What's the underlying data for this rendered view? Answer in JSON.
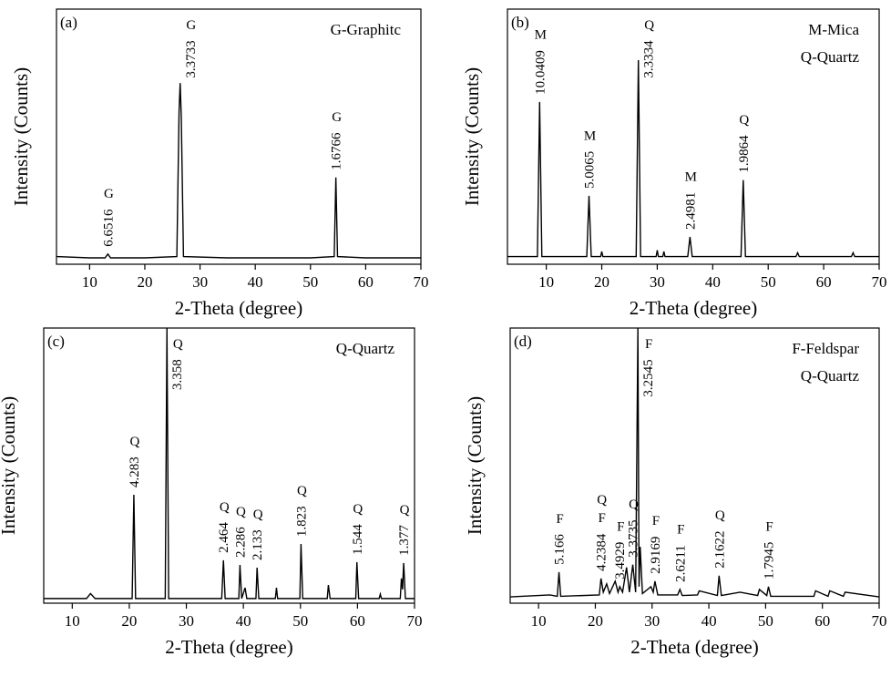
{
  "chart_data": [
    {
      "type": "line",
      "panel": "(a)",
      "xlabel": "2-Theta (degree)",
      "ylabel": "Intensity (Counts)",
      "legend_text": [
        "G-Graphitc"
      ],
      "color": "#000000",
      "xlim": [
        4,
        70
      ],
      "ylim": [
        0,
        100
      ],
      "xticks": [
        10,
        20,
        30,
        40,
        50,
        60,
        70
      ],
      "x": [
        4,
        10,
        12.8,
        13.3,
        13.8,
        20,
        25.8,
        26.2,
        26.4,
        26.6,
        27.0,
        35,
        50,
        54.3,
        54.6,
        54.9,
        60,
        70
      ],
      "values": [
        3,
        2.5,
        2.5,
        4,
        2.5,
        2.5,
        3,
        60,
        71,
        58,
        3,
        2.5,
        2.5,
        3,
        34,
        3,
        2.5,
        2.5
      ],
      "annotations": [
        {
          "phase": [
            "G"
          ],
          "label": "6.6516",
          "x": 13.3
        },
        {
          "phase": [
            "G"
          ],
          "label": "3.3733",
          "x": 26.4
        },
        {
          "phase": [
            "G"
          ],
          "label": "1.6766",
          "x": 54.6
        }
      ]
    },
    {
      "type": "line",
      "panel": "(b)",
      "xlabel": "2-Theta (degree)",
      "ylabel": "Intensity (Counts)",
      "legend_text": [
        "M-Mica",
        "Q-Quartz"
      ],
      "color": "#000000",
      "xlim": [
        3,
        70
      ],
      "ylim": [
        0,
        100
      ],
      "xticks": [
        10,
        20,
        30,
        40,
        50,
        60,
        70
      ],
      "x": [
        3,
        8.4,
        8.8,
        9.2,
        17.3,
        17.7,
        18.1,
        19.8,
        20.0,
        20.2,
        26.2,
        26.6,
        27.0,
        29.8,
        30.0,
        30.2,
        31.0,
        31.2,
        31.4,
        35.5,
        35.9,
        36.3,
        45.1,
        45.5,
        45.9,
        55,
        55.3,
        55.6,
        65,
        65.3,
        65.6,
        70
      ],
      "values": [
        3,
        3,
        63.6,
        3,
        3,
        26.8,
        3,
        3,
        5,
        3,
        3,
        80,
        3,
        3,
        5.5,
        3,
        3,
        5,
        3,
        3,
        10.7,
        3,
        3,
        33,
        3,
        3,
        4.5,
        3,
        3,
        4.5,
        3,
        3
      ],
      "annotations": [
        {
          "phase": [
            "M"
          ],
          "label": "10.0409",
          "x": 8.8
        },
        {
          "phase": [
            "M"
          ],
          "label": "5.0065",
          "x": 17.7
        },
        {
          "phase": [
            "Q"
          ],
          "label": "3.3334",
          "x": 26.6
        },
        {
          "phase": [
            "M"
          ],
          "label": "2.4981",
          "x": 35.9
        },
        {
          "phase": [
            "Q"
          ],
          "label": "1.9864",
          "x": 45.5
        }
      ]
    },
    {
      "type": "line",
      "panel": "(c)",
      "xlabel": "2-Theta (degree)",
      "ylabel": "Intensity (Counts)",
      "legend_text": [
        "Q-Quartz"
      ],
      "color": "#000000",
      "xlim": [
        5,
        70
      ],
      "ylim": [
        0,
        100
      ],
      "xticks": [
        10,
        20,
        30,
        40,
        50,
        60,
        70
      ],
      "x": [
        5,
        12.5,
        13.2,
        14,
        20.5,
        20.8,
        21.1,
        26.3,
        26.6,
        26.9,
        36.2,
        36.5,
        36.8,
        39.2,
        39.4,
        39.7,
        40.3,
        40.6,
        42.2,
        42.4,
        42.7,
        45.6,
        45.8,
        46.0,
        49.9,
        50.1,
        50.4,
        54.7,
        54.9,
        55.2,
        59.7,
        59.9,
        60.2,
        63.8,
        64.0,
        64.2,
        67.5,
        67.7,
        67.9,
        68.1,
        68.4,
        70
      ],
      "values": [
        1.7,
        1.7,
        3.5,
        1.7,
        1.7,
        39.4,
        1.7,
        1.7,
        100,
        1.7,
        1.7,
        15.6,
        1.7,
        1.7,
        13.9,
        1.7,
        5.6,
        1.7,
        1.7,
        12.9,
        1.7,
        1.7,
        5.6,
        1.7,
        1.7,
        21.5,
        1.7,
        1.7,
        6.6,
        1.7,
        1.7,
        14.9,
        1.7,
        1.7,
        3.3,
        1.7,
        1.7,
        9,
        5,
        14.6,
        1.7,
        1.7
      ],
      "annotations": [
        {
          "phase": [
            "Q"
          ],
          "label": "4.283",
          "x": 20.8
        },
        {
          "phase": [
            "Q"
          ],
          "label": "3.358",
          "x": 26.6
        },
        {
          "phase": [
            "Q"
          ],
          "label": "2.464",
          "x": 36.5
        },
        {
          "phase": [
            "Q"
          ],
          "label": "2.286",
          "x": 39.4
        },
        {
          "phase": [
            "Q"
          ],
          "label": "2.133",
          "x": 42.4
        },
        {
          "phase": [
            "Q"
          ],
          "label": "1.823",
          "x": 50.1
        },
        {
          "phase": [
            "Q"
          ],
          "label": "1.544",
          "x": 59.9
        },
        {
          "phase": [
            "Q"
          ],
          "label": "1.377",
          "x": 68.1
        }
      ]
    },
    {
      "type": "line",
      "panel": "(d)",
      "xlabel": "2-Theta (degree)",
      "ylabel": "Intensity (Counts)",
      "legend_text": [
        "F-Feldspar",
        "Q-Quartz"
      ],
      "color": "#000000",
      "xlim": [
        5,
        70
      ],
      "ylim": [
        0,
        100
      ],
      "xticks": [
        10,
        20,
        30,
        40,
        50,
        60,
        70
      ],
      "x": [
        5,
        12,
        13.3,
        13.6,
        13.9,
        20.7,
        21.0,
        21.4,
        22.0,
        22.5,
        23.5,
        24.0,
        24.3,
        24.8,
        25.5,
        26.0,
        26.6,
        27.1,
        27.5,
        27.7,
        27.9,
        28.3,
        29.8,
        30.2,
        30.5,
        31.0,
        34.5,
        34.9,
        35.3,
        38.0,
        38.3,
        41.5,
        41.8,
        42.2,
        45.5,
        48.6,
        48.9,
        50.2,
        50.5,
        50.9,
        58.5,
        58.8,
        61,
        61.3,
        63.7,
        64.0,
        70
      ],
      "values": [
        2.3,
        3,
        2.5,
        11.3,
        2.5,
        3,
        9,
        4,
        7,
        3.5,
        8,
        4,
        6,
        4,
        13,
        4,
        14,
        4,
        100,
        6,
        20.5,
        3.5,
        6,
        4,
        8,
        3,
        3,
        5,
        2.8,
        3,
        4.5,
        2.8,
        10,
        2.8,
        4,
        2.8,
        5,
        2.8,
        6,
        2.5,
        2.5,
        4.5,
        2.5,
        4.5,
        2.5,
        4,
        2.3
      ],
      "annotations": [
        {
          "phase": [
            "F"
          ],
          "label": "5.166",
          "x": 13.6
        },
        {
          "phase": [
            "Q",
            "F"
          ],
          "label": "4.2384",
          "x": 21.0
        },
        {
          "phase": [
            "F"
          ],
          "label": "3.4929",
          "x": 24.3
        },
        {
          "phase": [
            "Q"
          ],
          "label": "3.3735",
          "x": 26.6
        },
        {
          "phase": [
            "F"
          ],
          "label": "3.2545",
          "x": 27.5
        },
        {
          "phase": [
            "F"
          ],
          "label": "2.9169",
          "x": 30.5
        },
        {
          "phase": [
            "F"
          ],
          "label": "2.6211",
          "x": 34.9
        },
        {
          "phase": [
            "Q"
          ],
          "label": "2.1622",
          "x": 41.8
        },
        {
          "phase": [
            "F"
          ],
          "label": "1.7945",
          "x": 50.5
        }
      ]
    }
  ]
}
